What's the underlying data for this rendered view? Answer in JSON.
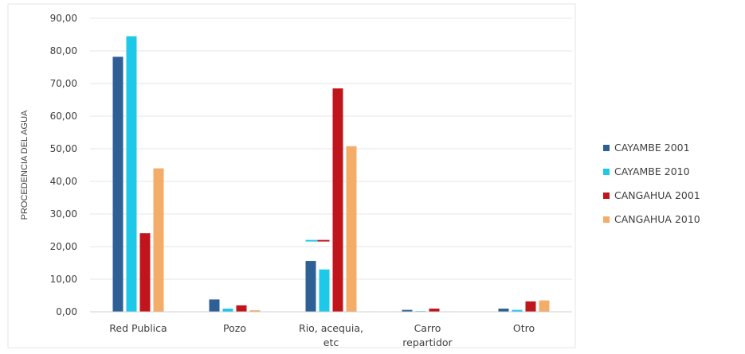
{
  "chart_data": {
    "type": "bar",
    "title": "",
    "xlabel": "",
    "ylabel": "PROCEDENCIA DEL AGUA",
    "ylim": [
      0,
      90
    ],
    "ytick_step": 10,
    "ytick_labels": [
      "0,00",
      "10,00",
      "20,00",
      "30,00",
      "40,00",
      "50,00",
      "60,00",
      "70,00",
      "80,00",
      "90,00"
    ],
    "grid": true,
    "legend_position": "right",
    "categories": [
      [
        "Red Publica"
      ],
      [
        "Pozo"
      ],
      [
        "Rio, acequia,",
        "etc"
      ],
      [
        "Carro",
        "repartidor"
      ],
      [
        "Otro"
      ]
    ],
    "series": [
      {
        "name": "CAYAMBE 2001",
        "color": "#2e6095",
        "values": [
          78.2,
          3.8,
          15.6,
          0.6,
          1.0
        ]
      },
      {
        "name": "CAYAMBE 2010",
        "color": "#1ec8e8",
        "values": [
          84.5,
          1.0,
          13.0,
          0.2,
          0.6
        ]
      },
      {
        "name": "CANGAHUA 2001",
        "color": "#c0161b",
        "values": [
          24.1,
          2.0,
          68.5,
          1.0,
          3.2
        ]
      },
      {
        "name": "CANGAHUA 2010",
        "color": "#f4ad68",
        "values": [
          44.0,
          0.5,
          50.8,
          0.1,
          3.5
        ]
      }
    ],
    "annotations": [
      {
        "type": "line",
        "category_index": 2,
        "y": 21.8,
        "colors": [
          "#1ec8e8",
          "#c0161b"
        ]
      }
    ]
  }
}
